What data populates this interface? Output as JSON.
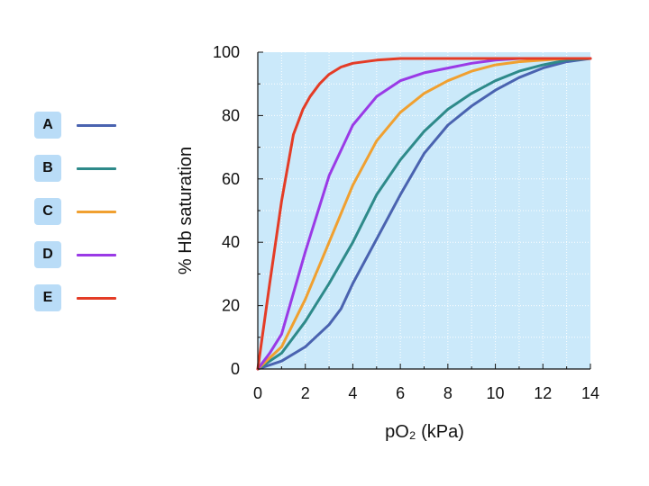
{
  "chart_data": {
    "type": "line",
    "title": "",
    "xlabel": "pO₂ (kPa)",
    "ylabel": "% Hb saturation",
    "xlim": [
      0,
      14
    ],
    "ylim": [
      0,
      100
    ],
    "x_ticks": [
      "0",
      "2",
      "4",
      "6",
      "8",
      "10",
      "12",
      "14"
    ],
    "y_ticks": [
      "0",
      "20",
      "40",
      "60",
      "80",
      "100"
    ],
    "grid": true,
    "legend_position": "left",
    "background_color": "#cbe9fa",
    "series": [
      {
        "name": "A",
        "color": "#4a63b0",
        "x": [
          0,
          1,
          2,
          3,
          3.5,
          4,
          5,
          6,
          7,
          8,
          9,
          10,
          11,
          12,
          13,
          14
        ],
        "y": [
          0,
          2.5,
          7,
          14,
          19,
          27,
          41,
          55,
          68,
          77,
          83,
          88,
          92,
          95,
          97,
          98
        ]
      },
      {
        "name": "B",
        "color": "#2e8a8a",
        "x": [
          0,
          1,
          2,
          3,
          4,
          5,
          6,
          7,
          8,
          9,
          10,
          11,
          12,
          13,
          14
        ],
        "y": [
          0,
          5,
          15,
          27,
          40,
          55,
          66,
          75,
          82,
          87,
          91,
          94,
          96,
          97.5,
          98
        ]
      },
      {
        "name": "C",
        "color": "#f0a030",
        "x": [
          0,
          1,
          2,
          3,
          4,
          5,
          6,
          7,
          8,
          9,
          10,
          11,
          12,
          13,
          14
        ],
        "y": [
          0,
          7,
          22,
          40,
          58,
          72,
          81,
          87,
          91,
          94,
          96,
          97,
          97.5,
          98,
          98
        ]
      },
      {
        "name": "D",
        "color": "#9a3ae6",
        "x": [
          0,
          0.5,
          1,
          2,
          3,
          4,
          5,
          6,
          7,
          8,
          9,
          10,
          11,
          12,
          13,
          14
        ],
        "y": [
          0,
          5,
          11,
          37,
          61,
          77,
          86,
          91,
          93.5,
          95,
          96.5,
          97.5,
          98,
          98,
          98,
          98
        ]
      },
      {
        "name": "E",
        "color": "#e43c26",
        "x": [
          0,
          0.5,
          1,
          1.5,
          1.9,
          2.2,
          2.6,
          3,
          3.5,
          4,
          5,
          6,
          7,
          8,
          10,
          12,
          14
        ],
        "y": [
          0,
          27,
          53,
          74,
          82,
          86,
          90,
          93,
          95.3,
          96.5,
          97.5,
          98,
          98,
          98,
          98,
          98,
          98
        ]
      }
    ]
  }
}
